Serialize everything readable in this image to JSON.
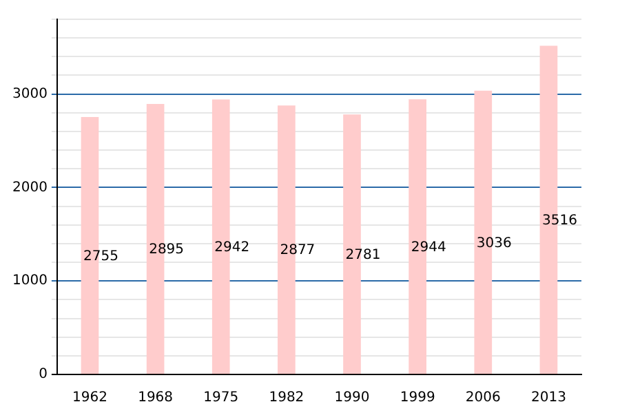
{
  "chart_data": {
    "type": "bar",
    "categories": [
      "1962",
      "1968",
      "1975",
      "1982",
      "1990",
      "1999",
      "2006",
      "2013"
    ],
    "values": [
      2755,
      2895,
      2942,
      2877,
      2781,
      2944,
      3036,
      3516
    ],
    "color": "#ffcccc",
    "ylim": [
      0,
      3800
    ],
    "yticks": [
      0,
      {
        "value": 200,
        "label": null
      },
      {
        "value": 400,
        "label": null
      },
      {
        "value": 600,
        "label": null
      },
      {
        "value": 800,
        "label": null
      },
      1000,
      {
        "value": 1200,
        "label": null
      },
      {
        "value": 1400,
        "label": null
      },
      {
        "value": 1600,
        "label": null
      },
      {
        "value": 1800,
        "label": null
      },
      2000,
      {
        "value": 2200,
        "label": null
      },
      {
        "value": 2400,
        "label": null
      },
      {
        "value": 2600,
        "label": null
      },
      {
        "value": 2800,
        "label": null
      },
      3000,
      {
        "value": 3200,
        "label": null
      },
      {
        "value": 3400,
        "label": null
      },
      {
        "value": 3600,
        "label": null
      },
      {
        "value": 3800,
        "label": null
      }
    ],
    "grid": true,
    "data_labels": true
  }
}
